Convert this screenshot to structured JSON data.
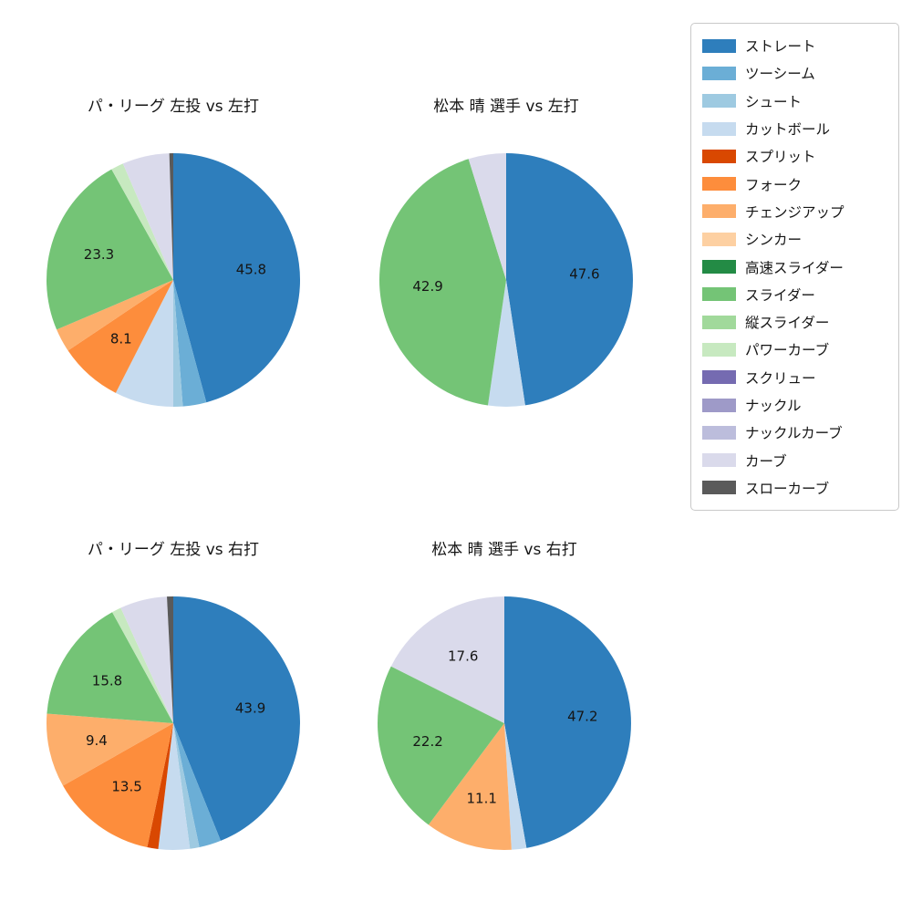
{
  "figure": {
    "background": "#ffffff"
  },
  "legend": {
    "position": "upper right",
    "items": [
      {
        "label": "ストレート",
        "color": "#2e7ebc"
      },
      {
        "label": "ツーシーム",
        "color": "#6baed6"
      },
      {
        "label": "シュート",
        "color": "#9ecae1"
      },
      {
        "label": "カットボール",
        "color": "#c6dbef"
      },
      {
        "label": "スプリット",
        "color": "#d94801"
      },
      {
        "label": "フォーク",
        "color": "#fd8d3c"
      },
      {
        "label": "チェンジアップ",
        "color": "#fdae6b"
      },
      {
        "label": "シンカー",
        "color": "#fdd0a2"
      },
      {
        "label": "高速スライダー",
        "color": "#238b45"
      },
      {
        "label": "スライダー",
        "color": "#74c476"
      },
      {
        "label": "縦スライダー",
        "color": "#a1d99b"
      },
      {
        "label": "パワーカーブ",
        "color": "#c7e9c0"
      },
      {
        "label": "スクリュー",
        "color": "#756bb1"
      },
      {
        "label": "ナックル",
        "color": "#9e9ac8"
      },
      {
        "label": "ナックルカーブ",
        "color": "#bcbddc"
      },
      {
        "label": "カーブ",
        "color": "#dadaeb"
      },
      {
        "label": "スローカーブ",
        "color": "#5a5a5a"
      }
    ]
  },
  "chart_data": [
    {
      "type": "pie",
      "title": "パ・リーグ 左投 vs 左打",
      "start_angle": 90,
      "direction": "clockwise",
      "slices": [
        {
          "name": "ストレート",
          "value": 45.8,
          "label": "45.8"
        },
        {
          "name": "ツーシーム",
          "value": 3.0
        },
        {
          "name": "シュート",
          "value": 1.2
        },
        {
          "name": "カットボール",
          "value": 7.5
        },
        {
          "name": "フォーク",
          "value": 8.1,
          "label": "8.1"
        },
        {
          "name": "チェンジアップ",
          "value": 3.0
        },
        {
          "name": "スライダー",
          "value": 23.3,
          "label": "23.3"
        },
        {
          "name": "パワーカーブ",
          "value": 1.6
        },
        {
          "name": "カーブ",
          "value": 6.0
        },
        {
          "name": "スローカーブ",
          "value": 0.5
        }
      ]
    },
    {
      "type": "pie",
      "title": "松本 晴 選手 vs 左打",
      "start_angle": 90,
      "direction": "clockwise",
      "slices": [
        {
          "name": "ストレート",
          "value": 47.6,
          "label": "47.6"
        },
        {
          "name": "カットボール",
          "value": 4.7
        },
        {
          "name": "スライダー",
          "value": 42.9,
          "label": "42.9"
        },
        {
          "name": "カーブ",
          "value": 4.8
        }
      ]
    },
    {
      "type": "pie",
      "title": "パ・リーグ 左投 vs 右打",
      "start_angle": 90,
      "direction": "clockwise",
      "slices": [
        {
          "name": "ストレート",
          "value": 43.9,
          "label": "43.9"
        },
        {
          "name": "ツーシーム",
          "value": 2.8
        },
        {
          "name": "シュート",
          "value": 1.2
        },
        {
          "name": "カットボール",
          "value": 4.0
        },
        {
          "name": "スプリット",
          "value": 1.4
        },
        {
          "name": "フォーク",
          "value": 13.5,
          "label": "13.5"
        },
        {
          "name": "チェンジアップ",
          "value": 9.4,
          "label": "9.4"
        },
        {
          "name": "スライダー",
          "value": 15.8,
          "label": "15.8"
        },
        {
          "name": "パワーカーブ",
          "value": 1.2
        },
        {
          "name": "カーブ",
          "value": 6.0
        },
        {
          "name": "スローカーブ",
          "value": 0.8
        }
      ]
    },
    {
      "type": "pie",
      "title": "松本 晴 選手 vs 右打",
      "start_angle": 90,
      "direction": "clockwise",
      "slices": [
        {
          "name": "ストレート",
          "value": 47.2,
          "label": "47.2"
        },
        {
          "name": "カットボール",
          "value": 1.9
        },
        {
          "name": "チェンジアップ",
          "value": 11.1,
          "label": "11.1"
        },
        {
          "name": "スライダー",
          "value": 22.2,
          "label": "22.2"
        },
        {
          "name": "カーブ",
          "value": 17.6,
          "label": "17.6"
        }
      ]
    }
  ]
}
